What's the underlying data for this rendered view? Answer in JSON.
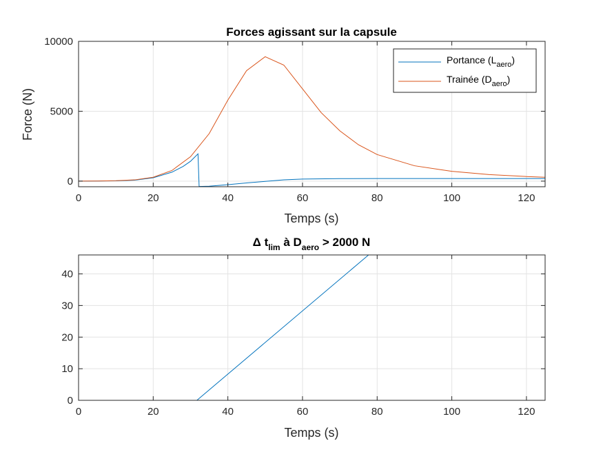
{
  "chart_data": [
    {
      "type": "line",
      "title": "Forces agissant sur la capsule",
      "xlabel": "Temps (s)",
      "ylabel": "Force (N)",
      "xlim": [
        0,
        125
      ],
      "ylim": [
        -400,
        10000
      ],
      "xticks": [
        0,
        20,
        40,
        60,
        80,
        100,
        120
      ],
      "yticks": [
        0,
        5000,
        10000
      ],
      "grid": true,
      "legend_position": "top-right",
      "series": [
        {
          "name": "Portance (L_aero)",
          "legend": {
            "main": "Portance (L",
            "sub": "aero",
            "close": ")"
          },
          "color": "#0072BD",
          "x": [
            0,
            5,
            10,
            15,
            20,
            25,
            28,
            30,
            32,
            32.3,
            35,
            40,
            45,
            50,
            55,
            60,
            70,
            80,
            90,
            100,
            110,
            120,
            125
          ],
          "y": [
            0,
            5,
            20,
            70,
            240,
            640,
            1050,
            1420,
            1950,
            -380,
            -360,
            -250,
            -130,
            -20,
            90,
            150,
            180,
            185,
            185,
            185,
            185,
            185,
            185
          ]
        },
        {
          "name": "Trainée (D_aero)",
          "legend": {
            "main": "Trainée (D",
            "sub": "aero",
            "close": ")"
          },
          "color": "#D95319",
          "x": [
            0,
            5,
            10,
            15,
            20,
            25,
            30,
            35,
            40,
            45,
            50,
            55,
            60,
            65,
            70,
            75,
            80,
            90,
            100,
            110,
            120,
            125
          ],
          "y": [
            0,
            8,
            30,
            90,
            280,
            760,
            1750,
            3400,
            5800,
            7900,
            8900,
            8300,
            6600,
            4900,
            3600,
            2600,
            1900,
            1100,
            700,
            470,
            330,
            280
          ]
        }
      ]
    },
    {
      "type": "line",
      "title_parts": [
        "Δ t",
        "lim",
        " à D",
        "aero",
        " > 2000 N"
      ],
      "xlabel": "Temps (s)",
      "ylabel": "",
      "xlim": [
        0,
        125
      ],
      "ylim": [
        0,
        46
      ],
      "xticks": [
        0,
        20,
        40,
        60,
        80,
        100,
        120
      ],
      "yticks": [
        0,
        10,
        20,
        30,
        40
      ],
      "grid": true,
      "series": [
        {
          "color": "#0072BD",
          "x": [
            0,
            31.7,
            77.7,
            125
          ],
          "y": [
            0,
            0,
            46,
            46
          ]
        }
      ]
    }
  ]
}
